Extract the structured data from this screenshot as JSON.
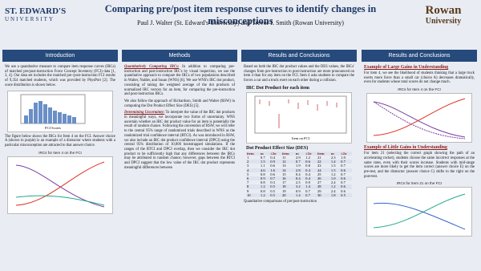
{
  "header": {
    "title": "Comparing pre/post item response curves to identify changes in misconceptions",
    "authors": "Paul J. Walter (St. Edward's University) and Trevor I. Smith (Rowan University)",
    "logo_left": "ST. EDWARD'S",
    "logo_left_sub": "UNIVERSITY",
    "logo_right": "Rowan",
    "logo_right_sub": "University"
  },
  "intro": {
    "heading": "Introduction",
    "p1": "We use a quantitative measure to compare item response curves (IRCs) of matched pre/post-instruction Force Concept Inventory (FCI) data [1, 3, 4]. Our data set includes the matched pre-/post-instruction FCI results of 9,354 matched students, which was provided by PhysPort [2]. The score distribution is shown below.",
    "p2": "The figure below shows the IRCs for Item 4 on the FCI. Answer choice A (shown in purple) is an example of a distractor where students with a particular misconception are attracted to that answer choice.",
    "figure_title": "IRCs for Item 4 on the FCI",
    "hist_xlabel": "FCI Scores"
  },
  "methods": {
    "heading": "Methods",
    "h1": "Quantitatively Comparing IRCs:",
    "p1": "In addition to comparing pre-instruction and post-instruction IRC's by visual inspection, we use the quantitative approach to compare the IRCs of two populations described in Walter, Nalder, and Susan (WNS) [6]. We use WNS's IRC dot product, consisting of taking the weighted average of the dot products of normalized IRC vectors for an item, for comparing the pre-instruction and post-instruction IRCs.",
    "p2": "We also follow the approach of Richardson, Smith and Walter (RSW) in computing the Dot Product Effect Size (DES) [5].",
    "h2": "Determining Uncertainty:",
    "p3": "To interpret the value of the IRC dot products in meaningful ways, we incorporate two forms of uncertainty. WNS ascertain whether an IRC dot product value for an item is potentially the result of random chance. Following the convention of RSW, we will refer to the central 95% range of randomized trials described in WNS as the randomized trial confidence interval (RTCI). As was introduced in RSW, we also include an IRC dot product confidence interval (DPCI) using the central 95% distribution of 10,000 bootstrapped simulations. If the ranges of the RTCI and DPCI overlap, then we consider the IRC dot product to be sufficiently high that any differences between the IRCs may be attributed to random chance; however, gaps between the RTCI and DPCI suggest that the low value of the IRC dot product represents meaningful differences between"
  },
  "results1": {
    "heading": "Results and Conclusions",
    "p1": "Based on both the IRC dot product values and the DES values, the IRCs' changes from pre-instruction to post-instruction are more pronounced on item 4 than for any item on the FCI. Item 4 asks students to compare the forces a car and a truck exert on each other during a collision.",
    "figure_title": "IRC Dot Product for each item",
    "figure_xlabel": "Item on FCI",
    "table_title": "Dot Product Effect Size (DES)",
    "p2": "Quantitative comparisons of pre/post-instruction"
  },
  "table": {
    "header": [
      "item",
      "m",
      "±2σ",
      "item",
      "m",
      "±2σ",
      "item",
      "m",
      "±2σ"
    ],
    "rows": [
      [
        "1",
        "0.7",
        "0.4",
        "11",
        "2.9",
        "1.2",
        "21",
        "2.3",
        "1.0"
      ],
      [
        "2",
        "1.5",
        "0.9",
        "12",
        "0.7",
        "0.6",
        "22",
        "1.4",
        "0.7"
      ],
      [
        "3",
        "1.1",
        "0.6",
        "13",
        "1.9",
        "0.8",
        "23",
        "1.5",
        "0.7"
      ],
      [
        "4",
        "4.6",
        "1.6",
        "14",
        "2.8",
        "0.4",
        "24",
        "1.5",
        "0.6"
      ],
      [
        "5",
        "0.8",
        "0.6",
        "15",
        "0.4",
        "0.4",
        "25",
        "1.2",
        "0.7"
      ],
      [
        "6",
        "0.9",
        "0.7",
        "16",
        "0.4",
        "0.4",
        "26",
        "1.0",
        "0.6"
      ],
      [
        "7",
        "0.8",
        "0.3",
        "17",
        "2.5",
        "0.9",
        "27",
        "2.4",
        "0.7"
      ],
      [
        "8",
        "1.2",
        "0.5",
        "18",
        "3.2",
        "1.4",
        "28",
        "1.2",
        "0.6"
      ],
      [
        "9",
        "0.8",
        "0.5",
        "19",
        "0.9",
        "0.7",
        "29",
        "2.4",
        "0.6"
      ],
      [
        "10",
        "1.2",
        "0.5",
        "20",
        "1.4",
        "0.7",
        "30",
        "1.8",
        "0.5"
      ]
    ]
  },
  "results2": {
    "heading": "Results and Conclusions",
    "h1": "Example of Large Gains in Understanding",
    "p1": "For item 4, we see the likelihood of students thinking that a large truck exerts more force than a small car (choice A) decreases dramatically, even for students whose total scores do not change much.",
    "figure1_title": "IRCs for Item 4 on the FCI",
    "h2": "Example of Little Gains in Understanding",
    "p2": "For item 21 (selecting the correct graph showing the path of an accelerating rocket), students choose the same incorrect responses at the same rates, even with their scores increase. Students with mid-range scores are more likely to get the item correct (answer choice E) on the pre-test, and the distractor (answer choice C) shifts to the right on the post-test.",
    "figure2_title": "IRCs for Item 21 on the FCI"
  }
}
